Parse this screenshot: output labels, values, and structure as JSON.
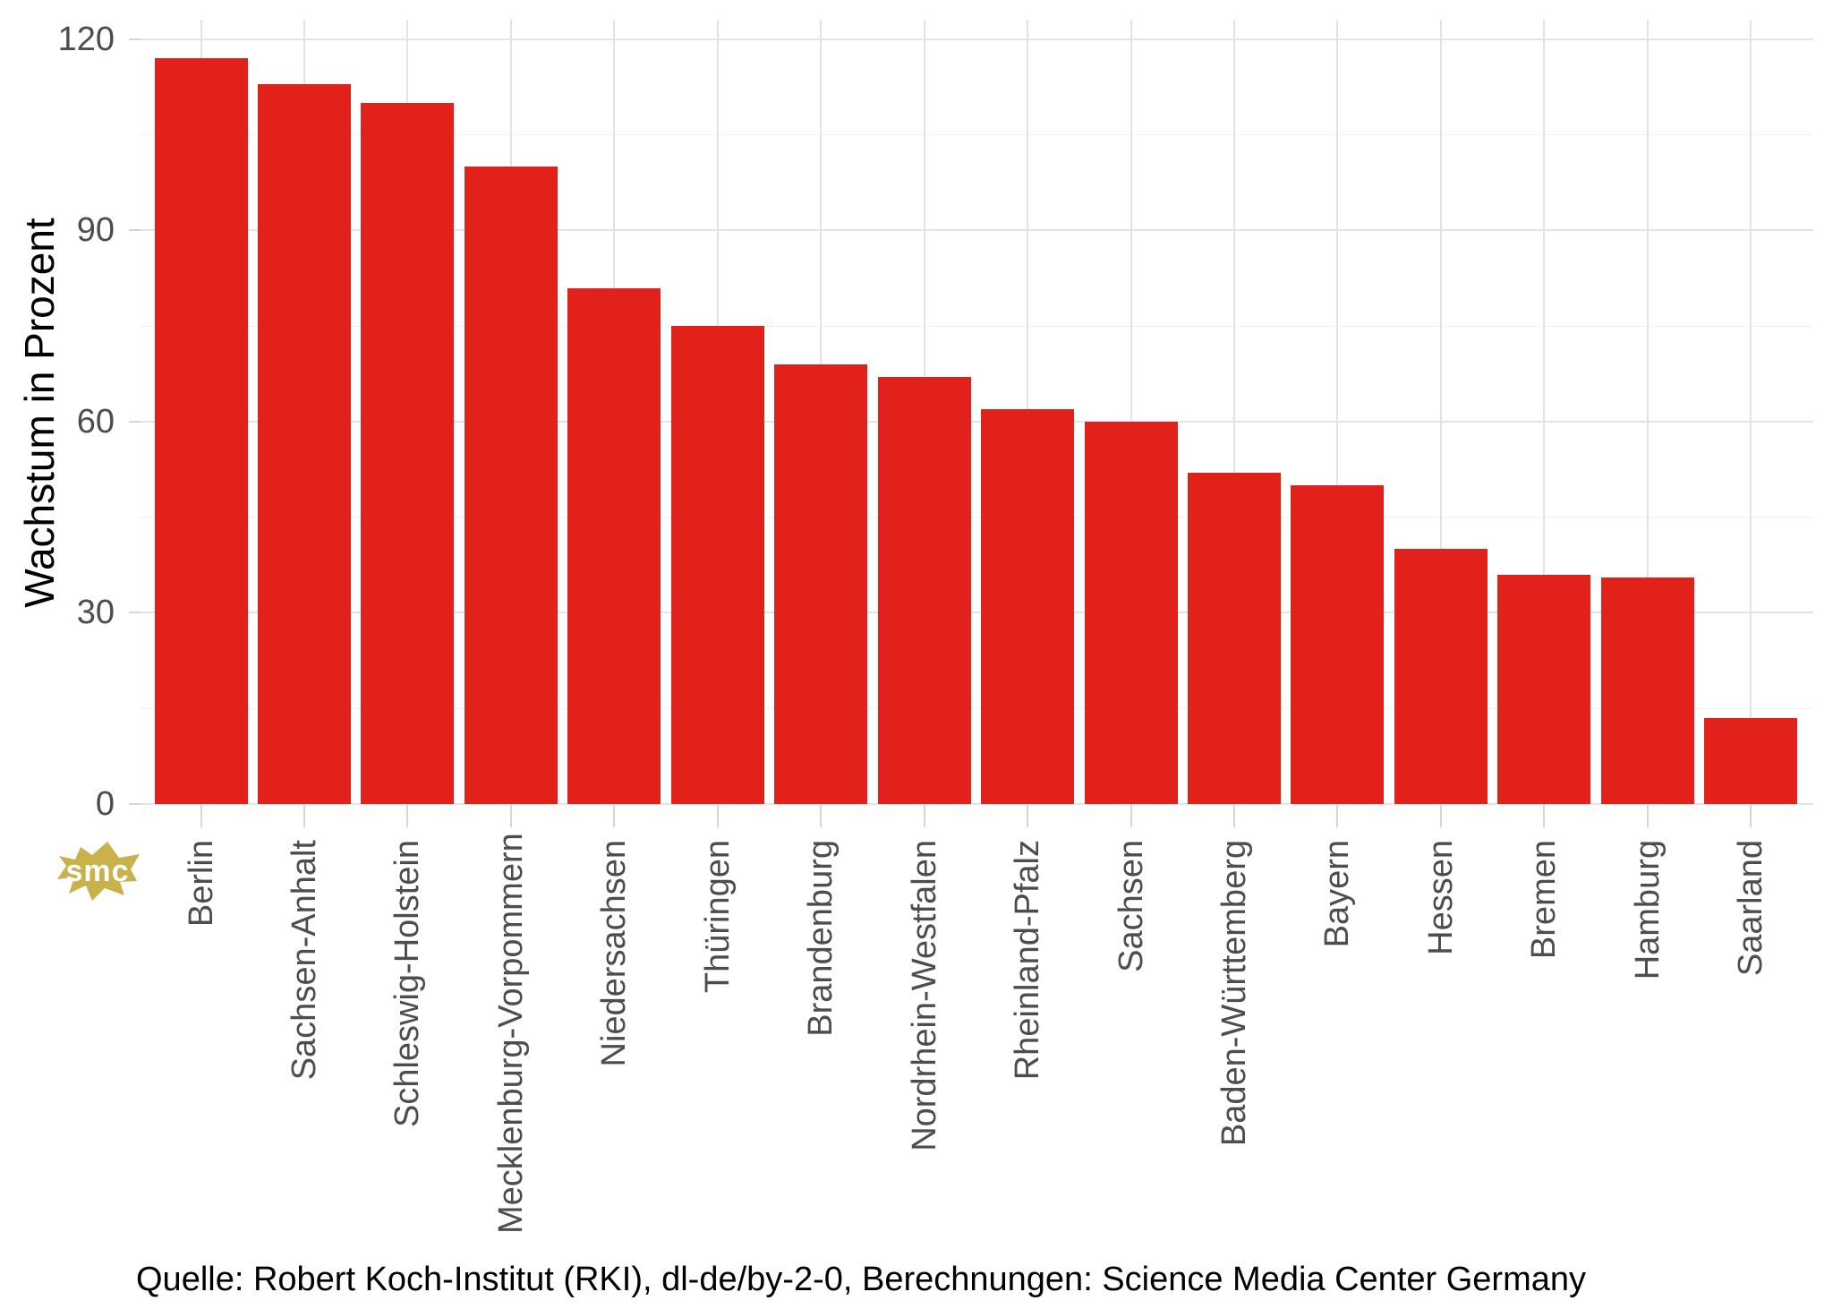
{
  "chart": {
    "y_axis_title": "Wachstum in Prozent",
    "caption": "Quelle: Robert Koch-Institut (RKI), dl-de/by-2-0, Berechnungen: Science Media Center Germany",
    "watermark_text": "smc"
  },
  "colors": {
    "bar": "#e2221a",
    "grid_major": "#e3e3e3",
    "grid_minor": "#f0f0f0",
    "tick_mark": "#d6d6d6",
    "tick_label": "#4d4d4d",
    "text": "#000000",
    "logo_gold": "#c9b14c",
    "background": "#ffffff"
  },
  "chart_data": {
    "type": "bar",
    "title": "",
    "xlabel": "",
    "ylabel": "Wachstum in Prozent",
    "categories": [
      "Berlin",
      "Sachsen-Anhalt",
      "Schleswig-Holstein",
      "Mecklenburg-Vorpommern",
      "Niedersachsen",
      "Thüringen",
      "Brandenburg",
      "Nordrhein-Westfalen",
      "Rheinland-Pfalz",
      "Sachsen",
      "Baden-Württemberg",
      "Bayern",
      "Hessen",
      "Bremen",
      "Hamburg",
      "Saarland"
    ],
    "values": [
      117,
      113,
      110,
      100,
      81,
      75,
      69,
      67,
      62,
      60,
      52,
      50,
      40,
      36,
      35.5,
      13.5
    ],
    "ylim": [
      0,
      123
    ],
    "yticks": [
      0,
      30,
      60,
      90,
      120
    ],
    "yticks_minor": [
      15,
      45,
      75,
      105
    ],
    "grid": "on",
    "legend": "none",
    "bar_color": "#e2221a",
    "caption": "Quelle: Robert Koch-Institut (RKI), dl-de/by-2-0, Berechnungen: Science Media Center Germany"
  }
}
